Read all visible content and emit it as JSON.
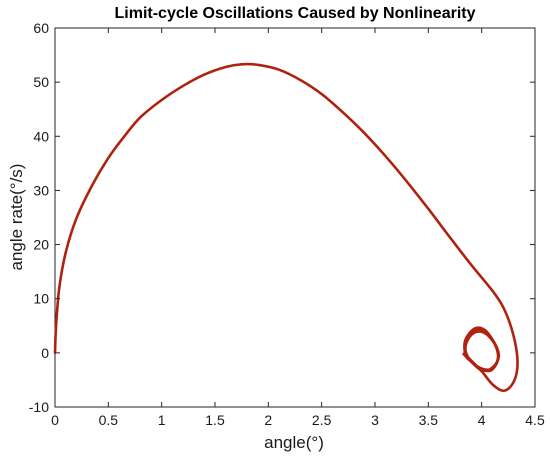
{
  "chart_data": {
    "type": "line",
    "title": "Limit-cycle Oscillations Caused by Nonlinearity",
    "xlabel": "angle(°)",
    "ylabel": "angle rate(°/s)",
    "xlim": [
      0,
      4.5
    ],
    "ylim": [
      -10,
      60
    ],
    "xticks": [
      0,
      0.5,
      1,
      1.5,
      2,
      2.5,
      3,
      3.5,
      4,
      4.5
    ],
    "yticks": [
      -10,
      0,
      10,
      20,
      30,
      40,
      50,
      60
    ],
    "xtick_labels": [
      "0",
      "0.5",
      "1",
      "1.5",
      "2",
      "2.5",
      "3",
      "3.5",
      "4",
      "4.5"
    ],
    "ytick_labels": [
      "-10",
      "0",
      "10",
      "20",
      "30",
      "40",
      "50",
      "60"
    ],
    "grid": false,
    "box": true,
    "series": [
      {
        "color": "#b0220f",
        "points": [
          [
            0.0,
            0.0
          ],
          [
            0.01,
            5.0
          ],
          [
            0.04,
            12.0
          ],
          [
            0.1,
            18.5
          ],
          [
            0.2,
            24.8
          ],
          [
            0.35,
            31.0
          ],
          [
            0.5,
            36.0
          ],
          [
            0.65,
            40.0
          ],
          [
            0.8,
            43.5
          ],
          [
            1.0,
            46.7
          ],
          [
            1.2,
            49.3
          ],
          [
            1.4,
            51.4
          ],
          [
            1.6,
            52.8
          ],
          [
            1.75,
            53.3
          ],
          [
            1.9,
            53.2
          ],
          [
            2.1,
            52.3
          ],
          [
            2.3,
            50.4
          ],
          [
            2.5,
            47.8
          ],
          [
            2.7,
            44.4
          ],
          [
            2.9,
            40.6
          ],
          [
            3.1,
            36.3
          ],
          [
            3.3,
            31.6
          ],
          [
            3.5,
            26.6
          ],
          [
            3.7,
            21.4
          ],
          [
            3.9,
            16.3
          ],
          [
            4.1,
            11.5
          ],
          [
            4.2,
            8.5
          ],
          [
            4.28,
            4.5
          ],
          [
            4.33,
            0.0
          ],
          [
            4.33,
            -3.5
          ],
          [
            4.28,
            -6.0
          ],
          [
            4.2,
            -7.0
          ],
          [
            4.1,
            -5.8
          ],
          [
            4.0,
            -3.4
          ],
          [
            3.9,
            -1.6
          ],
          [
            3.85,
            -0.5
          ],
          [
            3.84,
            1.8
          ],
          [
            3.88,
            3.5
          ],
          [
            3.95,
            4.6
          ],
          [
            4.03,
            4.2
          ],
          [
            4.1,
            2.5
          ],
          [
            4.15,
            0.5
          ],
          [
            4.14,
            -1.8
          ],
          [
            4.06,
            -3.2
          ],
          [
            3.98,
            -3.0
          ],
          [
            3.88,
            -1.2
          ],
          [
            3.83,
            -0.2
          ],
          [
            3.88,
            -1.0
          ],
          [
            3.98,
            -2.8
          ],
          [
            4.08,
            -3.3
          ],
          [
            4.15,
            -1.5
          ],
          [
            4.14,
            0.8
          ],
          [
            4.08,
            2.8
          ],
          [
            4.0,
            3.9
          ],
          [
            3.92,
            3.6
          ],
          [
            3.86,
            2.0
          ],
          [
            3.85,
            0.3
          ],
          [
            3.9,
            -1.5
          ],
          [
            4.0,
            -2.9
          ],
          [
            4.1,
            -2.9
          ],
          [
            4.16,
            -0.8
          ],
          [
            4.13,
            1.5
          ],
          [
            4.05,
            3.4
          ],
          [
            3.95,
            4.2
          ],
          [
            3.87,
            2.8
          ],
          [
            3.84,
            0.8
          ]
        ]
      }
    ]
  }
}
